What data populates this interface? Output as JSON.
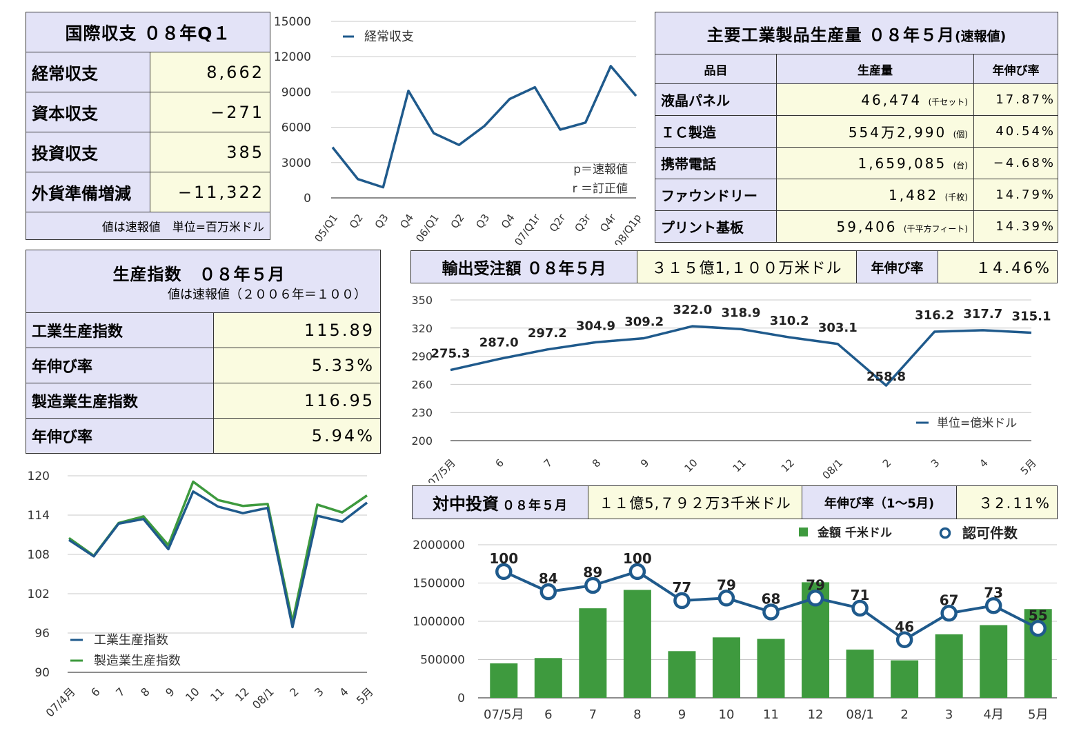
{
  "bop": {
    "title": "国際収支 ０８年Q１",
    "rows": [
      {
        "label": "経常収支",
        "value": "8,662"
      },
      {
        "label": "資本収支",
        "value": "−271"
      },
      {
        "label": "投資収支",
        "value": "385"
      },
      {
        "label": "外貨準備増減",
        "value": "−11,322"
      }
    ],
    "note": "値は速報値　単位=百万米ドル"
  },
  "production": {
    "title": "主要工業製品生産量 ０８年５月",
    "title_suffix": "(速報値)",
    "headers": [
      "品目",
      "生産量",
      "年伸び率"
    ],
    "rows": [
      {
        "item": "液晶パネル",
        "qty": "46,474",
        "unit": "(千セット)",
        "growth": "17.87%"
      },
      {
        "item": "ＩＣ製造",
        "qty": "554万2,990",
        "unit": "(個)",
        "growth": "40.54%"
      },
      {
        "item": "携帯電話",
        "qty": "1,659,085",
        "unit": "(台)",
        "growth": "−4.68%"
      },
      {
        "item": "ファウンドリー",
        "qty": "1,482",
        "unit": "(千枚)",
        "growth": "14.79%"
      },
      {
        "item": "プリント基板",
        "qty": "59,406",
        "unit": "(千平方フィート)",
        "growth": "14.39%"
      }
    ]
  },
  "index": {
    "title": "生産指数　０８年５月",
    "subtitle": "値は速報値（２００６年＝１００）",
    "rows": [
      {
        "label": "工業生産指数",
        "value": "115.89"
      },
      {
        "label": "年伸び率",
        "value": "5.33%"
      },
      {
        "label": "製造業生産指数",
        "value": "116.95"
      },
      {
        "label": "年伸び率",
        "value": "5.94%"
      }
    ]
  },
  "export_header": {
    "label": "輸出受注額 ０８年５月",
    "value": "３１５億1,１００万米ドル",
    "growth_label": "年伸び率",
    "growth_value": "１4.46%"
  },
  "fdi_header": {
    "label": "対中投資",
    "label_small": "０８年５月",
    "value": "１１億5,７９２万3千米ドル",
    "growth_label": "年伸び率（1～5月)",
    "growth_value": "３2.11%"
  },
  "chart_data": [
    {
      "id": "current-account",
      "type": "line",
      "categories": [
        "05/Q1",
        "Q2",
        "Q3",
        "Q4",
        "06/Q1",
        "Q2",
        "Q3",
        "Q4",
        "07/Q1r",
        "Q2r",
        "Q3r",
        "Q4r",
        "08/Q1p"
      ],
      "series": [
        {
          "name": "経常収支",
          "values": [
            4300,
            1600,
            900,
            9100,
            5500,
            4500,
            6100,
            8400,
            9400,
            5800,
            6400,
            11200,
            8662
          ],
          "color": "#1f5a8c"
        }
      ],
      "ylim": [
        0,
        15000
      ],
      "yticks": [
        0,
        3000,
        6000,
        9000,
        12000,
        15000
      ],
      "notes": [
        "p＝速報値",
        "r ＝訂正値"
      ],
      "grid": true,
      "legend": "top-left"
    },
    {
      "id": "export-orders",
      "type": "line",
      "categories": [
        "07/5月",
        "6",
        "7",
        "8",
        "9",
        "10",
        "11",
        "12",
        "08/1",
        "2",
        "3",
        "4",
        "5月"
      ],
      "series": [
        {
          "name": "単位=億米ドル",
          "values": [
            275.3,
            287.0,
            297.2,
            304.9,
            309.2,
            322.0,
            318.9,
            310.2,
            303.1,
            258.8,
            316.2,
            317.7,
            315.1
          ],
          "color": "#1f5a8c"
        }
      ],
      "data_labels": [
        "275.3",
        "287.0",
        "297.2",
        "304.9",
        "309.2",
        "322.0",
        "318.9",
        "310.2",
        "303.1",
        "258.8",
        "316.2",
        "317.7",
        "315.1"
      ],
      "ylim": [
        200,
        350
      ],
      "yticks": [
        200,
        230,
        260,
        290,
        320,
        350
      ],
      "grid": true,
      "legend": "bottom-right"
    },
    {
      "id": "production-index",
      "type": "line",
      "categories": [
        "07/4月",
        "6",
        "7",
        "8",
        "9",
        "10",
        "11",
        "12",
        "08/1",
        "2",
        "3",
        "4",
        "5月"
      ],
      "series": [
        {
          "name": "工業生産指数",
          "values": [
            110.2,
            107.7,
            112.7,
            113.4,
            108.8,
            117.6,
            115.3,
            114.3,
            115.1,
            96.9,
            113.9,
            113.0,
            115.9
          ],
          "color": "#1f5a8c"
        },
        {
          "name": "製造業生産指数",
          "values": [
            110.5,
            107.8,
            112.8,
            113.8,
            109.4,
            119.1,
            116.3,
            115.4,
            115.7,
            97.7,
            115.6,
            114.4,
            117.0
          ],
          "color": "#3e9a3e"
        }
      ],
      "ylim": [
        90,
        120
      ],
      "yticks": [
        90,
        96,
        102,
        108,
        114,
        120
      ],
      "grid": true,
      "legend": "bottom-left"
    },
    {
      "id": "fdi",
      "type": "bar",
      "categories": [
        "07/5月",
        "6",
        "7",
        "8",
        "9",
        "10",
        "11",
        "12",
        "08/1",
        "2",
        "3",
        "4月",
        "5月"
      ],
      "series": [
        {
          "name": "金額 千米ドル",
          "type": "bar",
          "values": [
            450000,
            520000,
            1170000,
            1410000,
            610000,
            790000,
            770000,
            1510000,
            630000,
            490000,
            830000,
            950000,
            1160000
          ],
          "color": "#3e9a3e"
        },
        {
          "name": "認可件数",
          "type": "line",
          "values": [
            100,
            84,
            89,
            100,
            77,
            79,
            68,
            79,
            71,
            46,
            67,
            73,
            55
          ],
          "color": "#1f5a8c"
        }
      ],
      "data_labels": [
        "100",
        "84",
        "89",
        "100",
        "77",
        "79",
        "68",
        "79",
        "71",
        "46",
        "67",
        "73",
        "55"
      ],
      "ylim": [
        0,
        2000000
      ],
      "yticks": [
        0,
        500000,
        1000000,
        1500000,
        2000000
      ],
      "grid": true,
      "legend": "top-right"
    }
  ]
}
